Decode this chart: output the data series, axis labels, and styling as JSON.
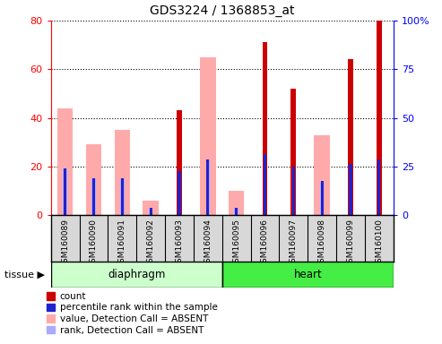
{
  "title": "GDS3224 / 1368853_at",
  "samples": [
    "GSM160089",
    "GSM160090",
    "GSM160091",
    "GSM160092",
    "GSM160093",
    "GSM160094",
    "GSM160095",
    "GSM160096",
    "GSM160097",
    "GSM160098",
    "GSM160099",
    "GSM160100"
  ],
  "count": [
    null,
    null,
    null,
    null,
    43,
    null,
    null,
    71,
    52,
    null,
    64,
    80
  ],
  "percentile_rank": [
    19,
    15,
    15,
    3,
    18,
    23,
    3,
    25,
    20,
    14,
    21,
    23
  ],
  "value_absent": [
    44,
    29,
    35,
    6,
    null,
    65,
    10,
    null,
    null,
    33,
    null,
    null
  ],
  "rank_absent": [
    19,
    15,
    15,
    3,
    null,
    23,
    3,
    null,
    null,
    14,
    null,
    null
  ],
  "left_ylim": [
    0,
    80
  ],
  "right_ylim": [
    0,
    100
  ],
  "left_yticks": [
    0,
    20,
    40,
    60,
    80
  ],
  "right_yticks": [
    0,
    25,
    50,
    75,
    100
  ],
  "right_yticklabels": [
    "0",
    "25",
    "50",
    "75",
    "100%"
  ],
  "count_color": "#cc0000",
  "pct_rank_color": "#2222cc",
  "value_absent_color": "#ffaaaa",
  "rank_absent_color": "#aaaaff",
  "diaphragm_color": "#ccffcc",
  "heart_color": "#44ee44",
  "legend_items": [
    {
      "label": "count",
      "color": "#cc0000"
    },
    {
      "label": "percentile rank within the sample",
      "color": "#2222cc"
    },
    {
      "label": "value, Detection Call = ABSENT",
      "color": "#ffaaaa"
    },
    {
      "label": "rank, Detection Call = ABSENT",
      "color": "#aaaaff"
    }
  ]
}
